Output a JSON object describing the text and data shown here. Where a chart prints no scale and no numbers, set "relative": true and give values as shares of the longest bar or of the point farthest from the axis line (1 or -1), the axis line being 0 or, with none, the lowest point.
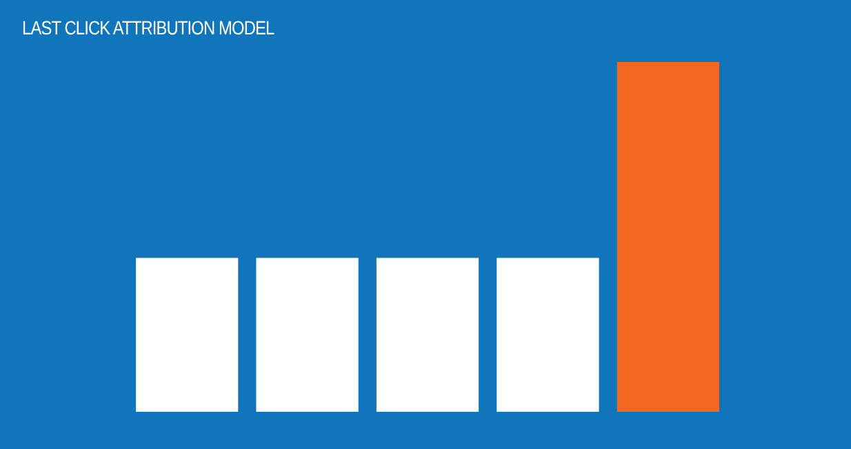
{
  "chart_data": {
    "type": "bar",
    "title": "LAST CLICK ATTRIBUTION MODEL",
    "categories": [
      null,
      null,
      null,
      null,
      null
    ],
    "values": [
      0.44,
      0.44,
      0.44,
      0.44,
      1
    ],
    "colors": [
      "#ffffff",
      "#ffffff",
      "#ffffff",
      "#ffffff",
      "#f26722"
    ],
    "relative": true
  }
}
